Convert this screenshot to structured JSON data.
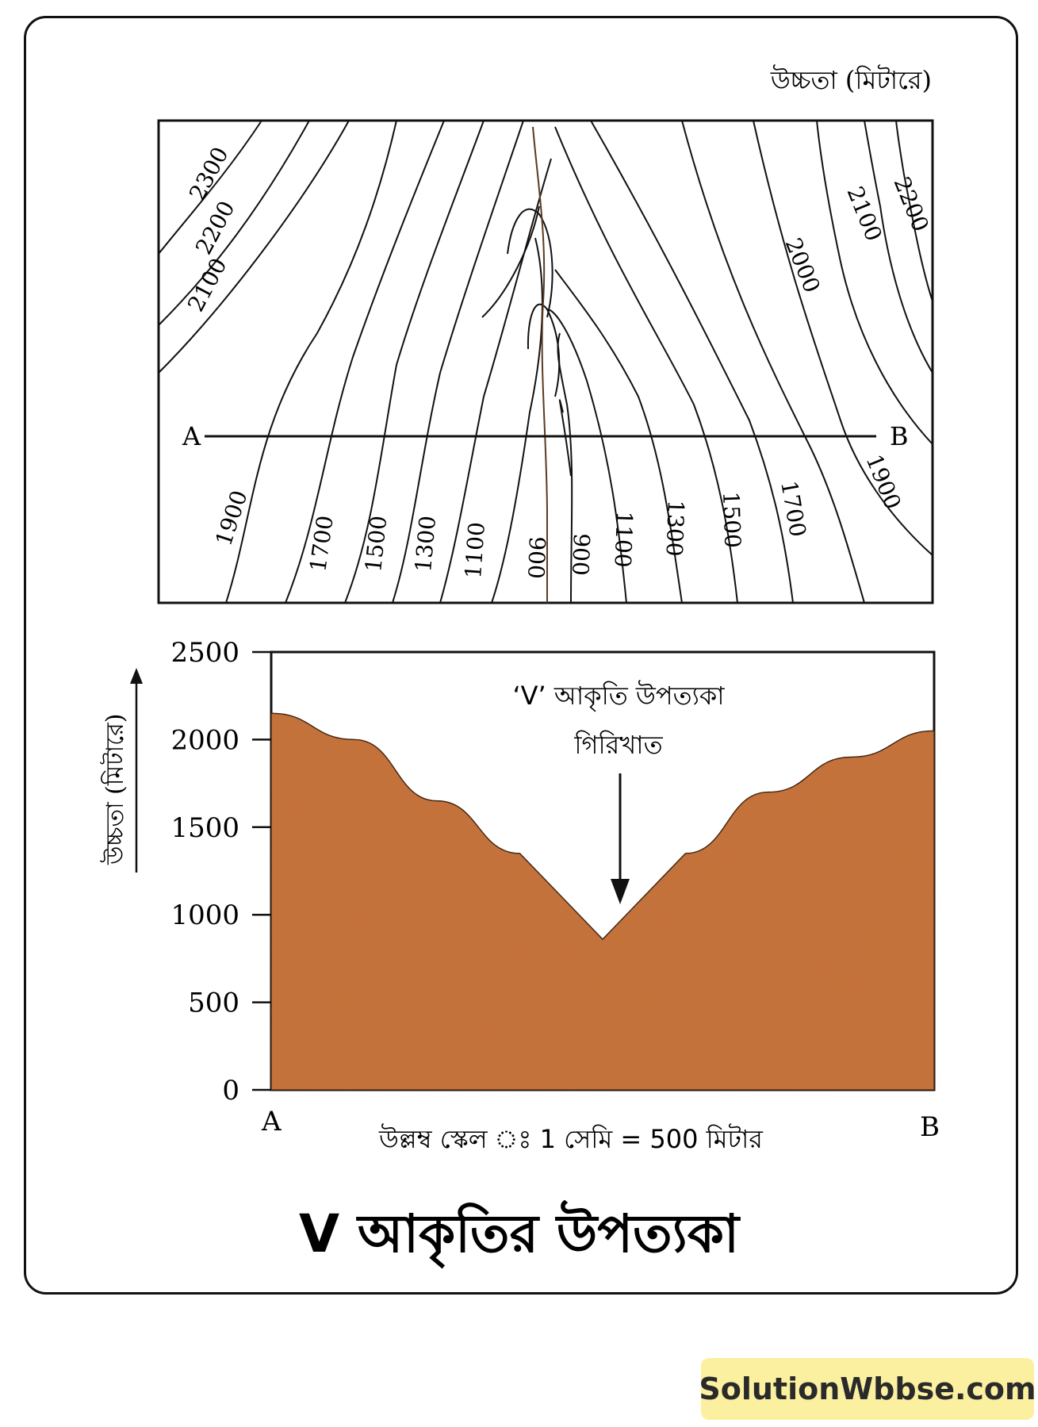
{
  "contour_map": {
    "corner_label": "উচ্চতা (মিটারে)",
    "section_start": "A",
    "section_end": "B",
    "left_top_labels": [
      "2300",
      "2200",
      "2100"
    ],
    "right_top_labels": [
      "2200",
      "2100",
      "2000"
    ],
    "bottom_labels": [
      "1900",
      "1700",
      "1500",
      "1300",
      "1100",
      "900",
      "900",
      "1100",
      "1300",
      "1500",
      "1700",
      "1900"
    ]
  },
  "profile": {
    "y_axis_label": "উচ্চতা (মিটারে)",
    "y_ticks": [
      "2500",
      "2000",
      "1500",
      "1000",
      "500",
      "0"
    ],
    "x_start": "A",
    "x_end": "B",
    "scale_note": "উল্লম্ব স্কেল ঃ 1 সেমি = 500 মিটার",
    "annotation_line1": "‘V’ আকৃতি উপত্যকা",
    "annotation_line2": "গিরিখাত",
    "fill_color": "#c8703a"
  },
  "chart_data": {
    "type": "area",
    "x": [
      "A",
      "",
      "",
      "",
      "",
      "",
      "",
      "",
      "B"
    ],
    "values": [
      2150,
      2000,
      1650,
      1350,
      860,
      1350,
      1700,
      1900,
      2050
    ],
    "ylabel": "উচ্চতা (মিটারে)",
    "ylim": [
      0,
      2500
    ],
    "yticks": [
      0,
      500,
      1000,
      1500,
      2000,
      2500
    ]
  },
  "caption": "V আকৃতির উপত্যকা",
  "watermark": "SolutionWbbse.com"
}
